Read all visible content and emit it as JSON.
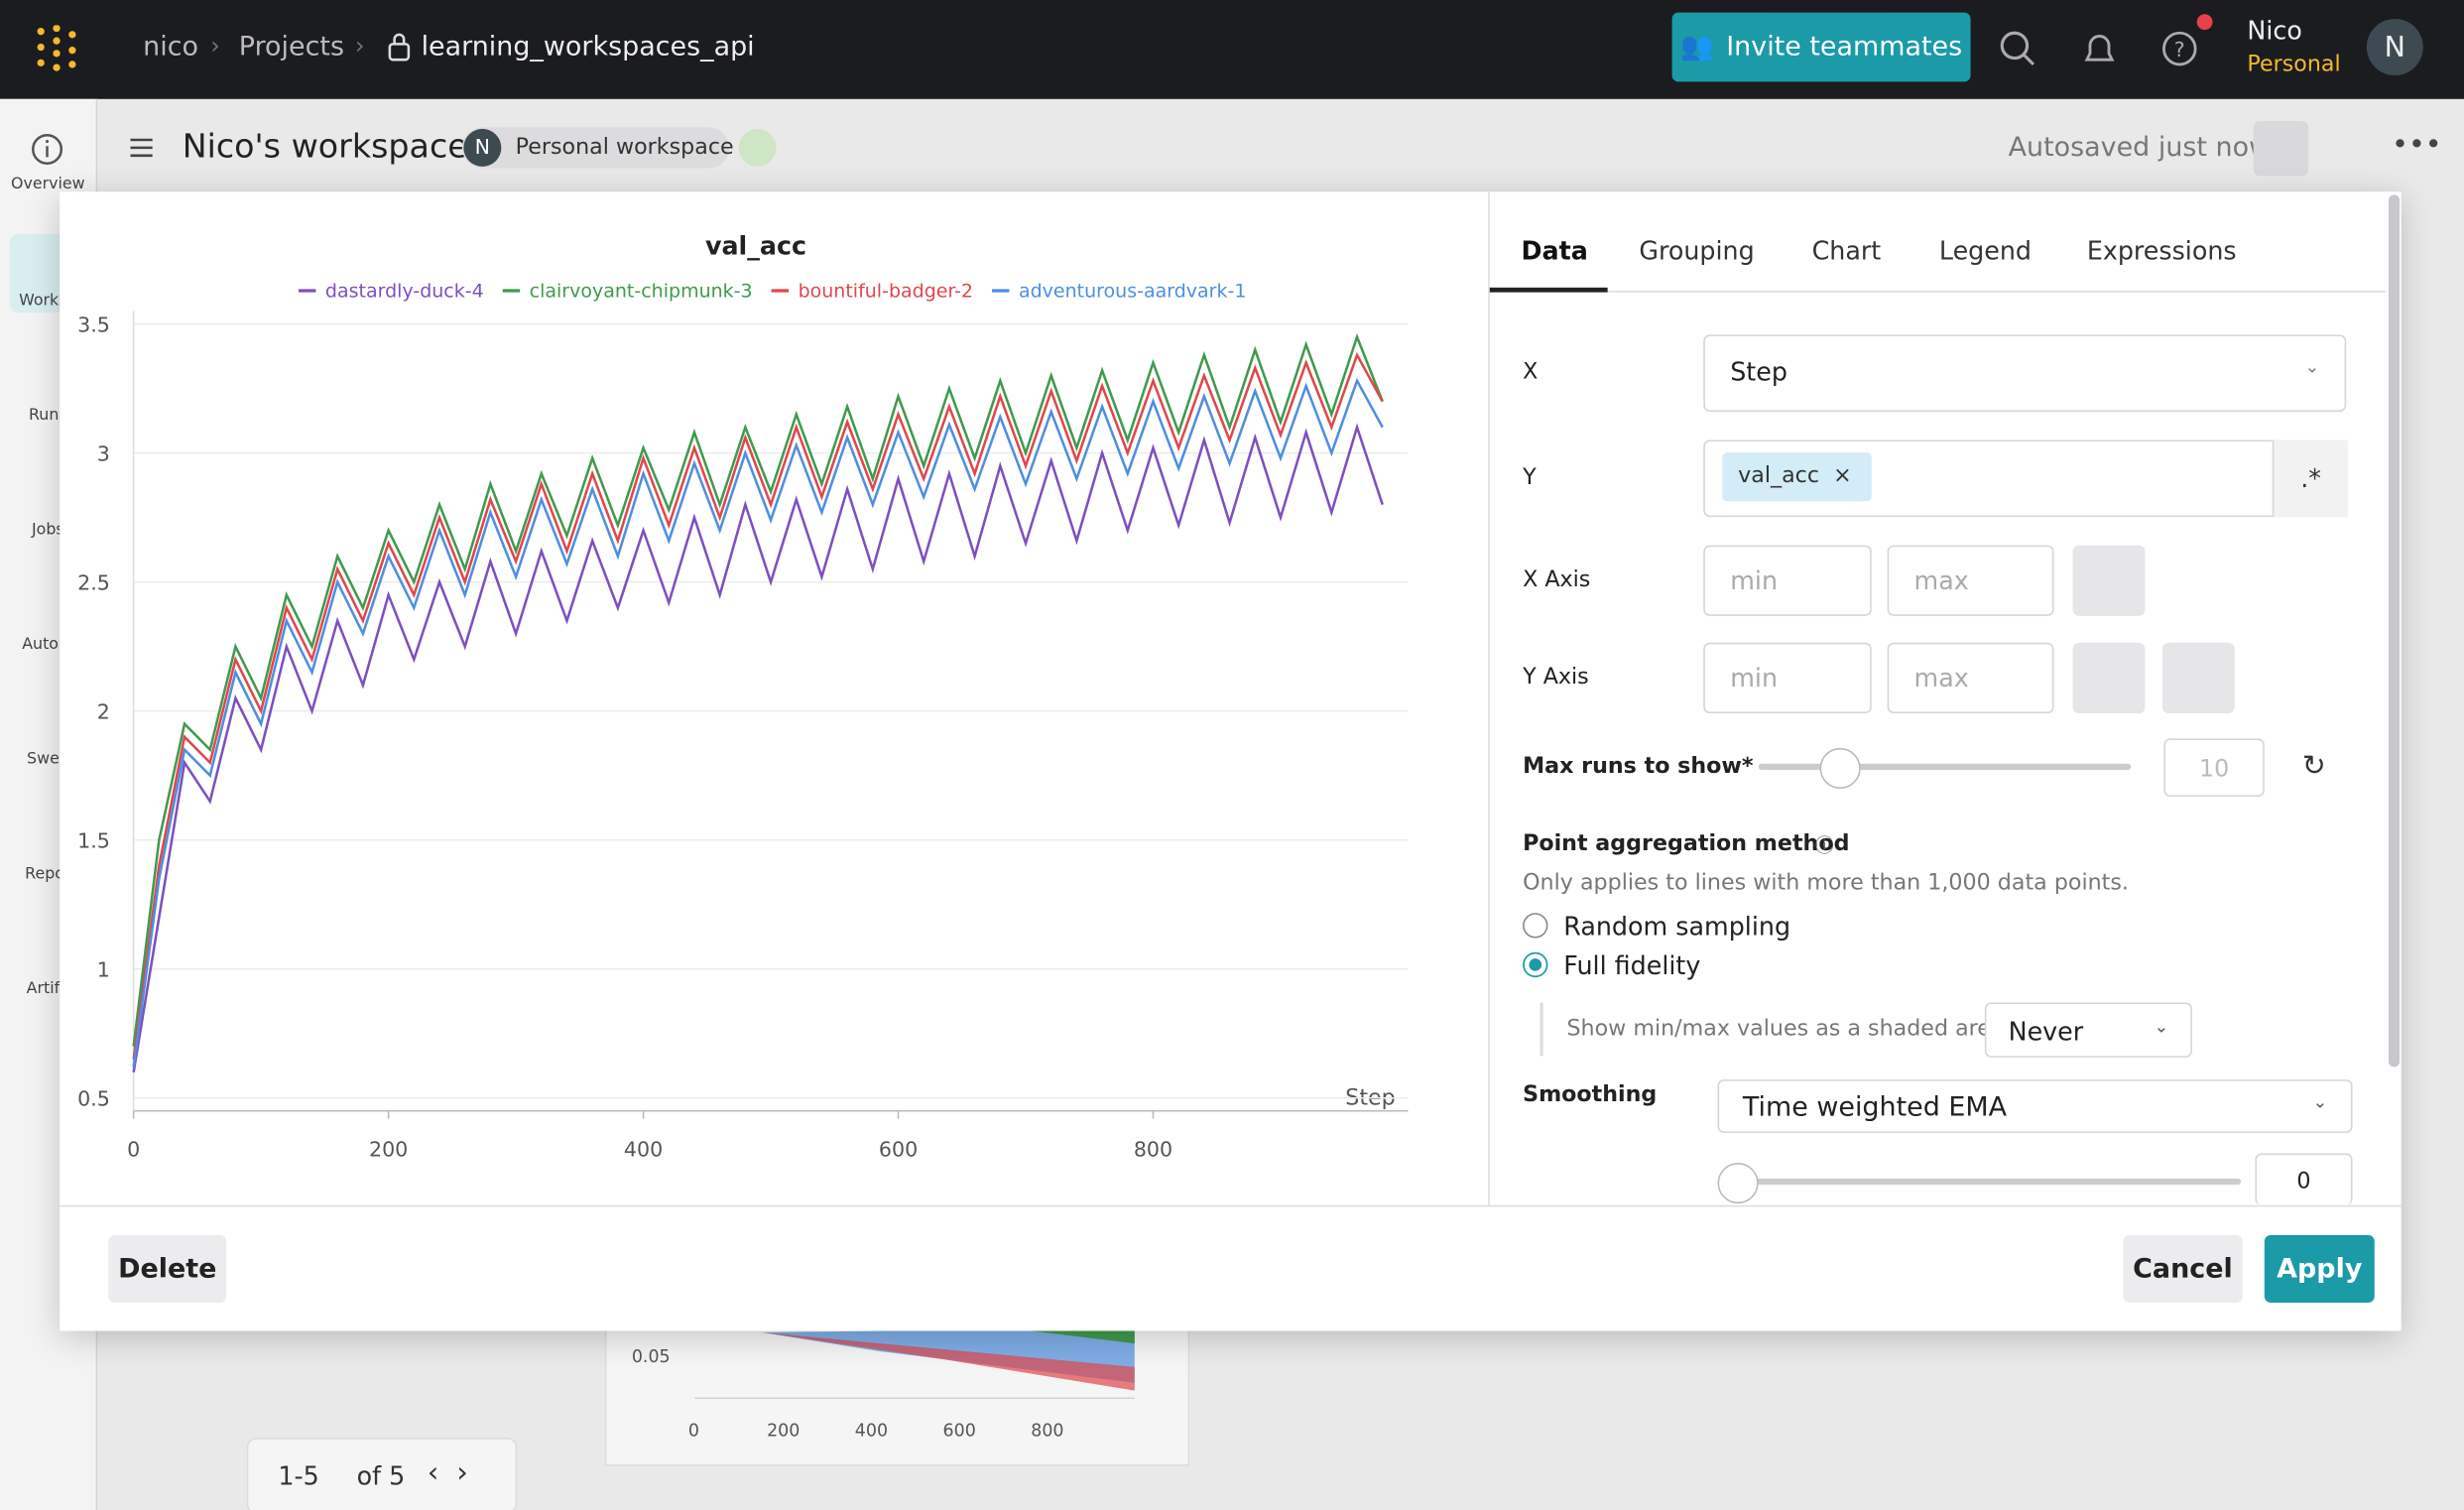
{
  "topbar": {
    "breadcrumb": [
      "nico",
      "Projects",
      "learning_workspaces_api"
    ],
    "invite": "Invite teammates",
    "user_name": "Nico",
    "user_plan": "Personal",
    "avatar": "N"
  },
  "sidebar": [
    "Overview",
    "Worksp",
    "Runs",
    "Jobs",
    "Autom",
    "Swee",
    "Repor",
    "Artifa"
  ],
  "header": {
    "title": "Nico's workspace",
    "badge_avatar": "N",
    "badge": "Personal workspace",
    "status": "Autosaved just now"
  },
  "background": {
    "ytick": "0.05",
    "xticks": [
      "0",
      "200",
      "400",
      "600",
      "800"
    ],
    "pagination": "1-5",
    "of": "of 5"
  },
  "chart_data": {
    "type": "line",
    "title": "val_acc",
    "x_label": "Step",
    "x": [
      0,
      20,
      40,
      60,
      80,
      100,
      120,
      140,
      160,
      180,
      200,
      220,
      240,
      260,
      280,
      300,
      320,
      340,
      360,
      380,
      400,
      420,
      440,
      460,
      480,
      500,
      520,
      540,
      560,
      580,
      600,
      620,
      640,
      660,
      680,
      700,
      720,
      740,
      760,
      780,
      800,
      820,
      840,
      860,
      880,
      900,
      920,
      940,
      960,
      980
    ],
    "series": [
      {
        "name": "dastardly-duck-4",
        "color": "#7e4fbf",
        "values": [
          0.6,
          1.2,
          1.8,
          1.65,
          2.05,
          1.85,
          2.25,
          2.0,
          2.35,
          2.1,
          2.45,
          2.2,
          2.5,
          2.25,
          2.58,
          2.3,
          2.62,
          2.35,
          2.66,
          2.4,
          2.7,
          2.42,
          2.75,
          2.45,
          2.8,
          2.5,
          2.82,
          2.52,
          2.86,
          2.55,
          2.9,
          2.58,
          2.92,
          2.6,
          2.95,
          2.65,
          2.97,
          2.66,
          3.0,
          2.7,
          3.02,
          2.72,
          3.05,
          2.73,
          3.06,
          2.75,
          3.08,
          2.77,
          3.1,
          2.8
        ]
      },
      {
        "name": "clairvoyant-chipmunk-3",
        "color": "#3f9a4d",
        "values": [
          0.7,
          1.5,
          1.95,
          1.85,
          2.25,
          2.05,
          2.45,
          2.25,
          2.6,
          2.4,
          2.7,
          2.5,
          2.8,
          2.55,
          2.88,
          2.62,
          2.92,
          2.68,
          2.98,
          2.72,
          3.02,
          2.78,
          3.08,
          2.8,
          3.1,
          2.85,
          3.15,
          2.88,
          3.18,
          2.9,
          3.22,
          2.95,
          3.25,
          2.98,
          3.28,
          3.0,
          3.3,
          3.02,
          3.32,
          3.05,
          3.35,
          3.08,
          3.38,
          3.1,
          3.4,
          3.12,
          3.42,
          3.15,
          3.45,
          3.2
        ]
      },
      {
        "name": "bountiful-badger-2",
        "color": "#e0474c",
        "values": [
          0.65,
          1.4,
          1.9,
          1.8,
          2.2,
          2.0,
          2.4,
          2.2,
          2.55,
          2.35,
          2.65,
          2.45,
          2.75,
          2.5,
          2.82,
          2.58,
          2.88,
          2.62,
          2.92,
          2.66,
          2.98,
          2.72,
          3.02,
          2.75,
          3.06,
          2.8,
          3.1,
          2.83,
          3.12,
          2.86,
          3.15,
          2.9,
          3.18,
          2.92,
          3.22,
          2.95,
          3.24,
          2.97,
          3.26,
          3.0,
          3.28,
          3.02,
          3.3,
          3.05,
          3.33,
          3.07,
          3.35,
          3.1,
          3.38,
          3.2
        ]
      },
      {
        "name": "adventurous-aardvark-1",
        "color": "#4d8fe0",
        "values": [
          0.62,
          1.35,
          1.85,
          1.75,
          2.15,
          1.95,
          2.35,
          2.15,
          2.5,
          2.3,
          2.6,
          2.4,
          2.7,
          2.45,
          2.77,
          2.52,
          2.82,
          2.57,
          2.86,
          2.6,
          2.92,
          2.66,
          2.96,
          2.7,
          3.0,
          2.74,
          3.03,
          2.77,
          3.06,
          2.8,
          3.08,
          2.83,
          3.11,
          2.86,
          3.14,
          2.88,
          3.16,
          2.9,
          3.18,
          2.92,
          3.2,
          2.94,
          3.22,
          2.96,
          3.24,
          2.98,
          3.26,
          3.0,
          3.28,
          3.1
        ]
      }
    ],
    "xlim": [
      0,
      1000
    ],
    "xticks": [
      0,
      200,
      400,
      600,
      800
    ],
    "ylim": [
      0.45,
      3.55
    ],
    "yticks": [
      0.5,
      1,
      1.5,
      2,
      2.5,
      3,
      3.5
    ],
    "grid": true
  },
  "editor": {
    "tabs": [
      "Data",
      "Grouping",
      "Chart",
      "Legend",
      "Expressions"
    ],
    "x_label": "X",
    "x_value": "Step",
    "y_label": "Y",
    "y_value": "val_acc",
    "regex": ".*",
    "x_axis": "X Axis",
    "y_axis": "Y Axis",
    "min": "min",
    "max": "max",
    "max_runs_label": "Max runs to show*",
    "max_runs": "10",
    "aggregation_label": "Point aggregation method",
    "aggregation_note": "Only applies to lines with more than 1,000 data points.",
    "options": [
      "Random sampling",
      "Full fidelity"
    ],
    "shaded_label": "Show min/max values as a shaded area",
    "shaded_value": "Never",
    "smoothing_label": "Smoothing",
    "smoothing_value": "Time weighted EMA",
    "smoothing_amount": "0"
  },
  "footer": {
    "delete": "Delete",
    "cancel": "Cancel",
    "apply": "Apply"
  }
}
